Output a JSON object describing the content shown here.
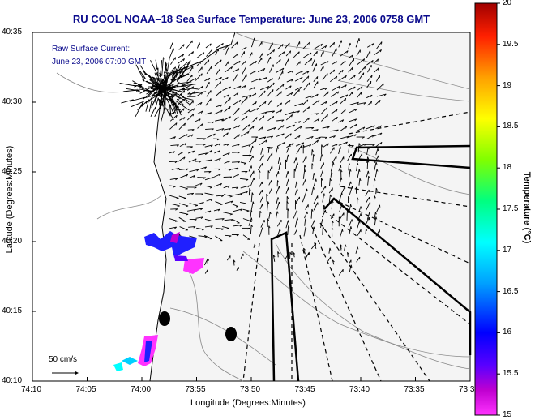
{
  "title": "RU COOL   NOAA–18  Sea Surface Temperature:  June 23, 2006 0758 GMT",
  "legend": {
    "line1": "Raw Surface Current:",
    "line2": "June 23, 2006 07:00 GMT"
  },
  "scale_label": "50 cm/s",
  "axes": {
    "xlabel": "Longitude (Degrees:Minutes)",
    "ylabel": "Latitude (Degrees:Minutes)",
    "xticks": [
      "74:10",
      "74:05",
      "74:00",
      "73:55",
      "73:50",
      "73:45",
      "73:40",
      "73:35",
      "73:3"
    ],
    "yticks": [
      "40:35",
      "40:30",
      "40:25",
      "40:20",
      "40:15",
      "40:10"
    ]
  },
  "colorbar": {
    "label": "Temperature (°C)",
    "ticks": [
      "20",
      "19.5",
      "19",
      "18.5",
      "18",
      "17.5",
      "17",
      "16.5",
      "16",
      "15.5",
      "15"
    ],
    "range": [
      15,
      20
    ]
  },
  "colors": {
    "title": "#0a0a8c",
    "arrows": "#000000",
    "contours": "#888888"
  }
}
